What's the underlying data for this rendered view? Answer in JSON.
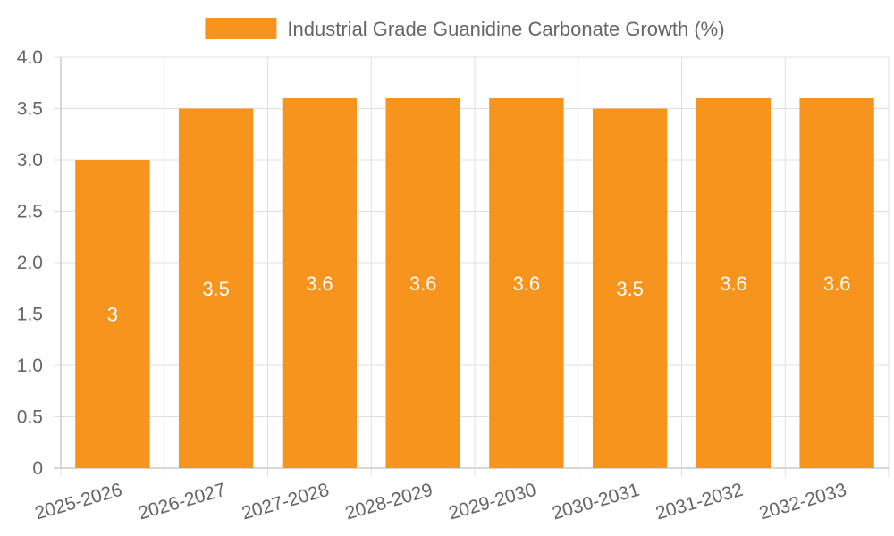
{
  "chart_data": {
    "type": "bar",
    "categories": [
      "2025-2026",
      "2026-2027",
      "2027-2028",
      "2028-2029",
      "2029-2030",
      "2030-2031",
      "2031-2032",
      "2032-2033"
    ],
    "series": [
      {
        "name": "Industrial Grade Guanidine Carbonate Growth (%)",
        "values": [
          3,
          3.5,
          3.6,
          3.6,
          3.6,
          3.5,
          3.6,
          3.6
        ],
        "data_labels": [
          "3",
          "3.5",
          "3.6",
          "3.6",
          "3.6",
          "3.5",
          "3.6",
          "3.6"
        ]
      }
    ],
    "ylim": [
      0,
      4.0
    ],
    "yticks": [
      "0",
      "0.5",
      "1.0",
      "1.5",
      "2.0",
      "2.5",
      "3.0",
      "3.5",
      "4.0"
    ],
    "grid": true,
    "legend_position": "top-center",
    "colors": {
      "bar": "#f7941d",
      "grid": "#e0e0e0",
      "axis": "#cccccc",
      "text": "#666666",
      "label": "#ffffff"
    }
  }
}
